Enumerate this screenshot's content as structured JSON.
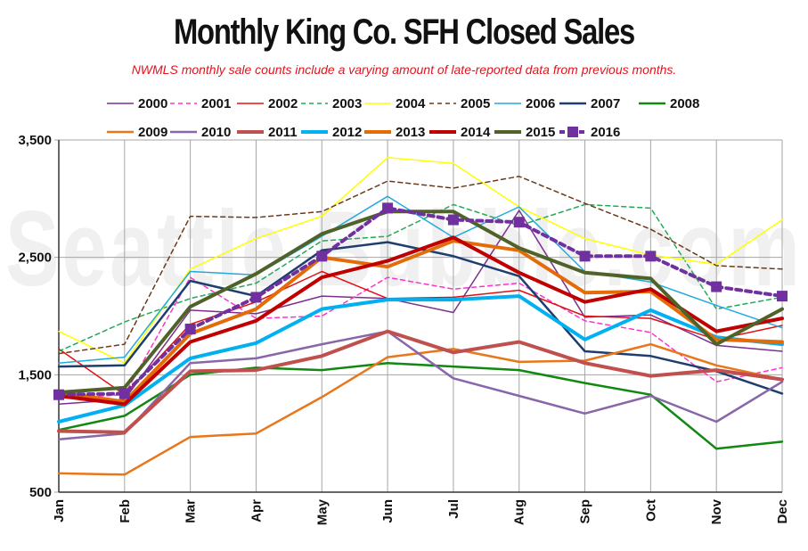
{
  "chart_data": {
    "type": "line",
    "title": "Monthly King Co. SFH Closed Sales",
    "subtitle": "NWMLS monthly sale counts include a varying amount of late-reported  data from previous months.",
    "watermark": "Seattle Bubble.com",
    "categories": [
      "Jan",
      "Feb",
      "Mar",
      "Apr",
      "May",
      "Jun",
      "Jul",
      "Aug",
      "Sep",
      "Oct",
      "Nov",
      "Dec"
    ],
    "ylim": [
      500,
      3500
    ],
    "yticks": [
      500,
      1500,
      2500,
      3500
    ],
    "ytick_labels": [
      "500",
      "1,500",
      "2,500",
      "3,500"
    ],
    "grid": true,
    "legend_position": "top",
    "series": [
      {
        "name": "2000",
        "color": "#7b2f8e",
        "style": "solid",
        "width": 1.5,
        "values": [
          1250,
          1290,
          2050,
          2020,
          2170,
          2150,
          2030,
          2900,
          1990,
          2010,
          1750,
          1700
        ]
      },
      {
        "name": "2001",
        "color": "#ff33cc",
        "style": "dashed",
        "width": 1.5,
        "values": [
          1300,
          1330,
          2330,
          1980,
          2000,
          2330,
          2230,
          2280,
          1960,
          1860,
          1440,
          1560
        ]
      },
      {
        "name": "2002",
        "color": "#e01010",
        "style": "solid",
        "width": 1.5,
        "values": [
          1720,
          1330,
          1930,
          2120,
          2380,
          2150,
          2160,
          2220,
          2000,
          1980,
          1800,
          1920
        ]
      },
      {
        "name": "2003",
        "color": "#22aa55",
        "style": "dashed",
        "width": 1.5,
        "values": [
          1700,
          1950,
          2150,
          2280,
          2640,
          2680,
          2950,
          2770,
          2950,
          2920,
          2060,
          2160
        ]
      },
      {
        "name": "2004",
        "color": "#ffff00",
        "style": "solid",
        "width": 1.5,
        "values": [
          1870,
          1600,
          2400,
          2660,
          2850,
          3350,
          3300,
          2930,
          2660,
          2520,
          2440,
          2820
        ]
      },
      {
        "name": "2005",
        "color": "#6b3a1a",
        "style": "dashed",
        "width": 1.5,
        "values": [
          1680,
          1760,
          2850,
          2840,
          2890,
          3150,
          3090,
          3190,
          2960,
          2740,
          2430,
          2400
        ]
      },
      {
        "name": "2006",
        "color": "#22aadd",
        "style": "solid",
        "width": 1.5,
        "values": [
          1600,
          1650,
          2380,
          2350,
          2680,
          3020,
          2670,
          2930,
          2380,
          2290,
          2090,
          1900
        ]
      },
      {
        "name": "2007",
        "color": "#1f3e6e",
        "style": "solid",
        "width": 2.5,
        "values": [
          1570,
          1580,
          2300,
          2170,
          2560,
          2630,
          2510,
          2340,
          1700,
          1660,
          1530,
          1340
        ]
      },
      {
        "name": "2008",
        "color": "#118811",
        "style": "solid",
        "width": 2.5,
        "values": [
          1030,
          1150,
          1500,
          1560,
          1540,
          1600,
          1570,
          1540,
          1430,
          1330,
          870,
          930
        ]
      },
      {
        "name": "2009",
        "color": "#e8761a",
        "style": "solid",
        "width": 2.5,
        "values": [
          660,
          650,
          970,
          1000,
          1310,
          1650,
          1720,
          1610,
          1620,
          1760,
          1580,
          1460
        ]
      },
      {
        "name": "2010",
        "color": "#8866aa",
        "style": "solid",
        "width": 2.5,
        "values": [
          950,
          1000,
          1600,
          1640,
          1760,
          1870,
          1470,
          1320,
          1170,
          1320,
          1100,
          1440
        ]
      },
      {
        "name": "2011",
        "color": "#c0504d",
        "style": "solid",
        "width": 4,
        "values": [
          1020,
          1010,
          1530,
          1540,
          1660,
          1870,
          1690,
          1780,
          1600,
          1490,
          1540,
          1460
        ]
      },
      {
        "name": "2012",
        "color": "#00b0f0",
        "style": "solid",
        "width": 4,
        "values": [
          1100,
          1240,
          1640,
          1770,
          2060,
          2140,
          2140,
          2170,
          1800,
          2050,
          1820,
          1760
        ]
      },
      {
        "name": "2013",
        "color": "#e36c09",
        "style": "solid",
        "width": 4,
        "values": [
          1350,
          1270,
          1850,
          2060,
          2500,
          2420,
          2640,
          2560,
          2200,
          2210,
          1800,
          1780
        ]
      },
      {
        "name": "2014",
        "color": "#c00000",
        "style": "solid",
        "width": 4,
        "values": [
          1320,
          1250,
          1780,
          1960,
          2330,
          2470,
          2670,
          2370,
          2120,
          2230,
          1870,
          1980
        ]
      },
      {
        "name": "2015",
        "color": "#4f6228",
        "style": "solid",
        "width": 4,
        "values": [
          1350,
          1390,
          2080,
          2360,
          2700,
          2890,
          2890,
          2580,
          2370,
          2320,
          1760,
          2060
        ]
      },
      {
        "name": "2016",
        "color": "#7030a0",
        "style": "dashed",
        "width": 4,
        "marker": "square",
        "values": [
          1330,
          1340,
          1890,
          2160,
          2510,
          2920,
          2820,
          2800,
          2510,
          2510,
          2250,
          2170
        ]
      }
    ]
  }
}
